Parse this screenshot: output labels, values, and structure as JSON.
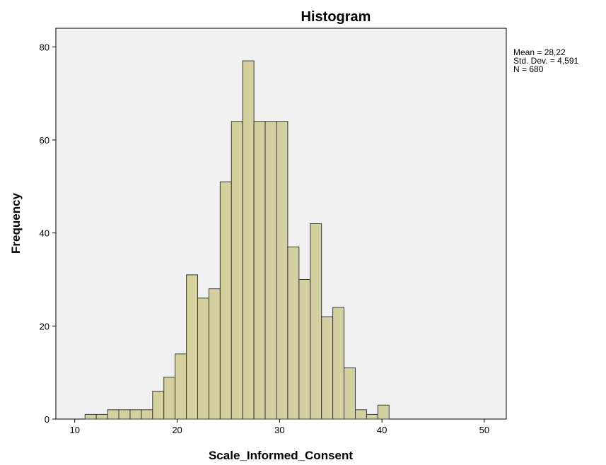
{
  "chart_data": {
    "type": "bar",
    "title": "Histogram",
    "xlabel": "Scale_Informed_Consent",
    "ylabel": "Frequency",
    "xlim": [
      8.15,
      52.15
    ],
    "ylim": [
      0,
      84
    ],
    "x_ticks": [
      10,
      20,
      30,
      40,
      50
    ],
    "y_ticks": [
      0,
      20,
      40,
      60,
      80
    ],
    "bin_width": 1.1,
    "bin_starts": [
      11.0,
      12.1,
      13.2,
      14.3,
      15.4,
      16.5,
      17.6,
      18.7,
      19.8,
      20.9,
      22.0,
      23.1,
      24.2,
      25.3,
      26.4,
      27.5,
      28.6,
      29.7,
      30.8,
      31.9,
      33.0,
      34.1,
      35.2,
      36.3,
      37.4,
      38.5,
      39.6
    ],
    "values": [
      1,
      1,
      2,
      2,
      2,
      2,
      6,
      9,
      14,
      31,
      26,
      28,
      51,
      64,
      77,
      64,
      64,
      64,
      37,
      30,
      42,
      22,
      24,
      11,
      2,
      1,
      3
    ],
    "bar_color": "#d4d0a0",
    "edge_color": "#3a3a3a",
    "plot_bg": "#f0f0f0",
    "grid": false
  },
  "stats": {
    "mean": "Mean = 28,22",
    "std": "Std. Dev. = 4,591",
    "n": "N = 680"
  }
}
